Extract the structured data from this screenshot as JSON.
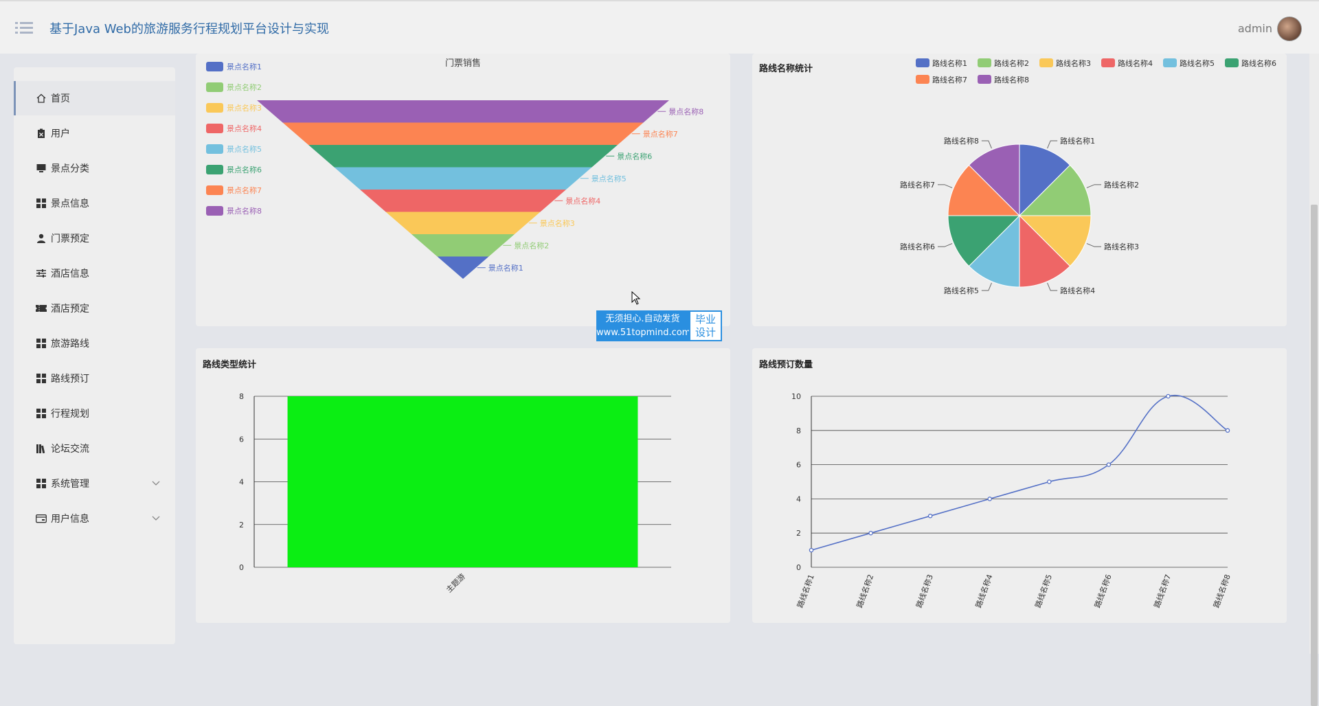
{
  "header": {
    "title": "基于Java Web的旅游服务行程规划平台设计与实现",
    "user": "admin"
  },
  "sidebar": {
    "items": [
      {
        "label": "首页",
        "icon": "home-icon"
      },
      {
        "label": "用户",
        "icon": "clipboard-icon"
      },
      {
        "label": "景点分类",
        "icon": "monitor-icon"
      },
      {
        "label": "景点信息",
        "icon": "grid-icon"
      },
      {
        "label": "门票预定",
        "icon": "person-icon"
      },
      {
        "label": "酒店信息",
        "icon": "sliders-icon"
      },
      {
        "label": "酒店预定",
        "icon": "ticket-icon"
      },
      {
        "label": "旅游路线",
        "icon": "grid-icon"
      },
      {
        "label": "路线预订",
        "icon": "grid-icon"
      },
      {
        "label": "行程规划",
        "icon": "grid-icon"
      },
      {
        "label": "论坛交流",
        "icon": "books-icon"
      },
      {
        "label": "系统管理",
        "icon": "grid-icon"
      },
      {
        "label": "用户信息",
        "icon": "card-icon"
      }
    ]
  },
  "watermark": {
    "line1": "无须担心.自动发货",
    "line2": "www.51topmind.com",
    "right1": "毕业",
    "right2": "设计"
  },
  "colors": [
    "#5470c6",
    "#91cc75",
    "#fac858",
    "#ee6666",
    "#73c0de",
    "#3ba272",
    "#fc8452",
    "#9a60b4"
  ],
  "chart_data": [
    {
      "type": "funnel",
      "title": "门票销售",
      "categories": [
        "景点名称1",
        "景点名称2",
        "景点名称3",
        "景点名称4",
        "景点名称5",
        "景点名称6",
        "景点名称7",
        "景点名称8"
      ],
      "values": [
        1,
        2,
        3,
        4,
        5,
        6,
        7,
        8
      ],
      "legend": "left"
    },
    {
      "type": "pie",
      "title": "路线名称统计",
      "categories": [
        "路线名称1",
        "路线名称2",
        "路线名称3",
        "路线名称4",
        "路线名称5",
        "路线名称6",
        "路线名称7",
        "路线名称8"
      ],
      "values": [
        1,
        1,
        1,
        1,
        1,
        1,
        1,
        1
      ],
      "legend": "top-right"
    },
    {
      "type": "bar",
      "title": "路线类型统计",
      "categories": [
        "主题游"
      ],
      "values": [
        8
      ],
      "ylim": [
        0,
        8
      ],
      "yticks": [
        0,
        2,
        4,
        6,
        8
      ],
      "bar_color": "#0bee13",
      "grid": true
    },
    {
      "type": "line",
      "title": "路线预订数量",
      "categories": [
        "路线名称1",
        "路线名称2",
        "路线名称3",
        "路线名称4",
        "路线名称5",
        "路线名称6",
        "路线名称7",
        "路线名称8"
      ],
      "values": [
        1,
        2,
        3,
        4,
        5,
        6,
        10,
        8
      ],
      "ylim": [
        0,
        10
      ],
      "yticks": [
        0,
        2,
        4,
        6,
        8,
        10
      ],
      "smooth": true,
      "grid": true
    }
  ]
}
